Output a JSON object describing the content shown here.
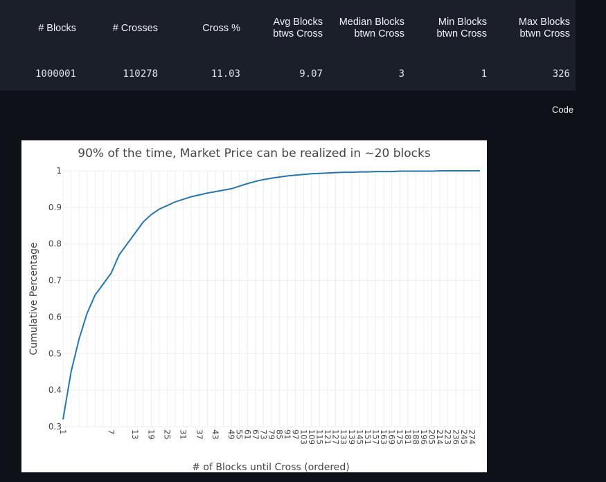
{
  "stats": {
    "headers": [
      [
        "# Blocks"
      ],
      [
        "# Crosses"
      ],
      [
        "Cross %"
      ],
      [
        "Avg Blocks",
        "btws Cross"
      ],
      [
        "Median Blocks",
        "btwn Cross"
      ],
      [
        "Min Blocks",
        "btwn Cross"
      ],
      [
        "Max Blocks",
        "btwn Cross"
      ]
    ],
    "values": [
      "1000001",
      "110278",
      "11.03",
      "9.07",
      "3",
      "1",
      "326"
    ]
  },
  "code_label": "Code",
  "colors": {
    "page_bg": "#0e1117",
    "table_bg": "#1a1f29",
    "line": "#1f77b4",
    "grid": "#eeeeee"
  },
  "chart_data": {
    "type": "line",
    "title": "90% of the time, Market Price can be realized in ~20 blocks",
    "xlabel": "# of Blocks until Cross (ordered)",
    "ylabel": "Cumulative Percentage",
    "x_axis": "categorical",
    "ylim": [
      0.3,
      1.0
    ],
    "yticks": [
      0.3,
      0.4,
      0.5,
      0.6,
      0.7,
      0.8,
      0.9,
      1
    ],
    "ytick_labels": [
      "0.3",
      "0.4",
      "0.5",
      "0.6",
      "0.7",
      "0.8",
      "0.9",
      "1"
    ],
    "xtick_labels": [
      "1",
      "7",
      "13",
      "19",
      "25",
      "31",
      "37",
      "43",
      "49",
      "55",
      "61",
      "67",
      "73",
      "79",
      "85",
      "91",
      "97",
      "103",
      "109",
      "115",
      "121",
      "127",
      "133",
      "139",
      "145",
      "151",
      "157",
      "163",
      "169",
      "175",
      "181",
      "188",
      "196",
      "205",
      "214",
      "223",
      "236",
      "245",
      "274"
    ],
    "grid": true,
    "series": [
      {
        "x": [
          "1",
          "2",
          "3",
          "4",
          "5",
          "6",
          "7",
          "9",
          "11",
          "13",
          "16",
          "19",
          "22",
          "25",
          "28",
          "31",
          "34",
          "37",
          "40",
          "43",
          "46",
          "49",
          "55",
          "61",
          "67",
          "73",
          "79",
          "85",
          "91",
          "97",
          "103",
          "109",
          "115",
          "121",
          "127",
          "133",
          "139",
          "145",
          "151",
          "157",
          "163",
          "169",
          "175",
          "181",
          "188",
          "196",
          "205",
          "214",
          "223",
          "236",
          "245",
          "274",
          "326"
        ],
        "y": [
          0.32,
          0.45,
          0.54,
          0.61,
          0.66,
          0.69,
          0.72,
          0.77,
          0.8,
          0.83,
          0.86,
          0.88,
          0.895,
          0.905,
          0.915,
          0.922,
          0.929,
          0.934,
          0.939,
          0.943,
          0.947,
          0.951,
          0.958,
          0.965,
          0.971,
          0.976,
          0.98,
          0.983,
          0.986,
          0.988,
          0.99,
          0.992,
          0.993,
          0.994,
          0.995,
          0.996,
          0.996,
          0.997,
          0.997,
          0.998,
          0.998,
          0.998,
          0.999,
          0.999,
          0.999,
          0.999,
          0.999,
          1.0,
          1.0,
          1.0,
          1.0,
          1.0,
          1.0
        ]
      }
    ]
  }
}
